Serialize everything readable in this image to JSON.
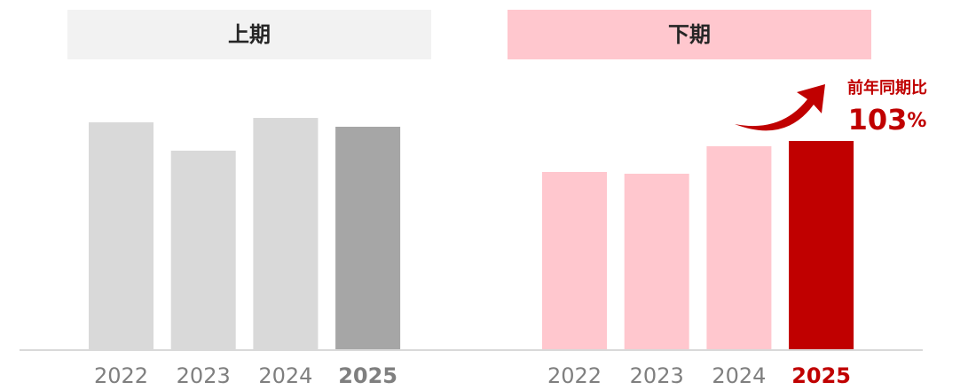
{
  "chart_data": [
    {
      "type": "bar",
      "title": "上期",
      "header_color": "#f2f2f2",
      "categories": [
        "2022",
        "2023",
        "2024",
        "2025"
      ],
      "values": [
        256,
        224,
        261,
        251
      ],
      "colors": [
        "#d9d9d9",
        "#d9d9d9",
        "#d9d9d9",
        "#a6a6a6"
      ],
      "label_colors": [
        "#7f7f7f",
        "#7f7f7f",
        "#7f7f7f",
        "#7f7f7f"
      ],
      "label_bold": [
        false,
        false,
        false,
        true
      ],
      "ylim": [
        0,
        300
      ]
    },
    {
      "type": "bar",
      "title": "下期",
      "header_color": "#ffc7ce",
      "categories": [
        "2022",
        "2023",
        "2024",
        "2025"
      ],
      "values": [
        200,
        198,
        229,
        235
      ],
      "colors": [
        "#ffc7ce",
        "#ffc7ce",
        "#ffc7ce",
        "#c00000"
      ],
      "label_colors": [
        "#7f7f7f",
        "#7f7f7f",
        "#7f7f7f",
        "#c00000"
      ],
      "label_bold": [
        false,
        false,
        false,
        true
      ],
      "ylim": [
        0,
        300
      ],
      "annotation": {
        "text": "前年同期比",
        "value": 103,
        "unit": "%"
      }
    }
  ]
}
